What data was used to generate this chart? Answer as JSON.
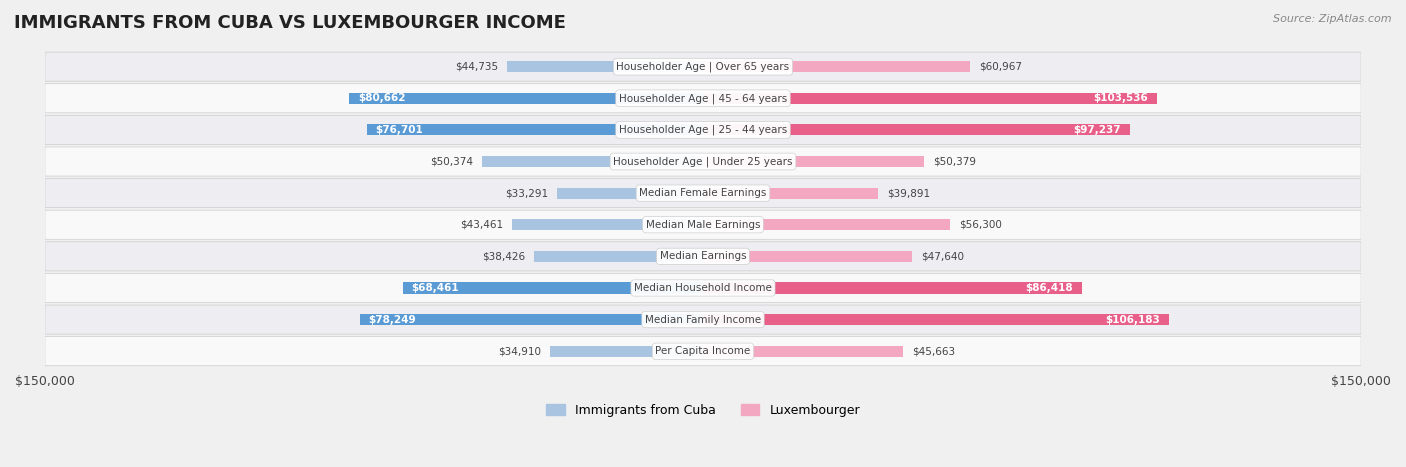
{
  "title": "IMMIGRANTS FROM CUBA VS LUXEMBOURGER INCOME",
  "source": "Source: ZipAtlas.com",
  "categories": [
    "Per Capita Income",
    "Median Family Income",
    "Median Household Income",
    "Median Earnings",
    "Median Male Earnings",
    "Median Female Earnings",
    "Householder Age | Under 25 years",
    "Householder Age | 25 - 44 years",
    "Householder Age | 45 - 64 years",
    "Householder Age | Over 65 years"
  ],
  "cuba_values": [
    34910,
    78249,
    68461,
    38426,
    43461,
    33291,
    50374,
    76701,
    80662,
    44735
  ],
  "lux_values": [
    45663,
    106183,
    86418,
    47640,
    56300,
    39891,
    50379,
    97237,
    103536,
    60967
  ],
  "cuba_labels": [
    "$34,910",
    "$78,249",
    "$68,461",
    "$38,426",
    "$43,461",
    "$33,291",
    "$50,374",
    "$76,701",
    "$80,662",
    "$44,735"
  ],
  "lux_labels": [
    "$45,663",
    "$106,183",
    "$86,418",
    "$47,640",
    "$56,300",
    "$39,891",
    "$50,379",
    "$97,237",
    "$103,536",
    "$60,967"
  ],
  "cuba_color_light": "#a8c4e0",
  "cuba_color_dark": "#5b9bd5",
  "lux_color_light": "#f4a7c0",
  "lux_color_dark": "#e8608a",
  "max_val": 150000,
  "bg_color": "#f0f0f0",
  "row_bg": "#f9f9f9",
  "row_bg_alt": "#f0f0f4",
  "legend_cuba": "Immigrants from Cuba",
  "legend_lux": "Luxembourger",
  "xlabel_left": "$150,000",
  "xlabel_right": "$150,000"
}
